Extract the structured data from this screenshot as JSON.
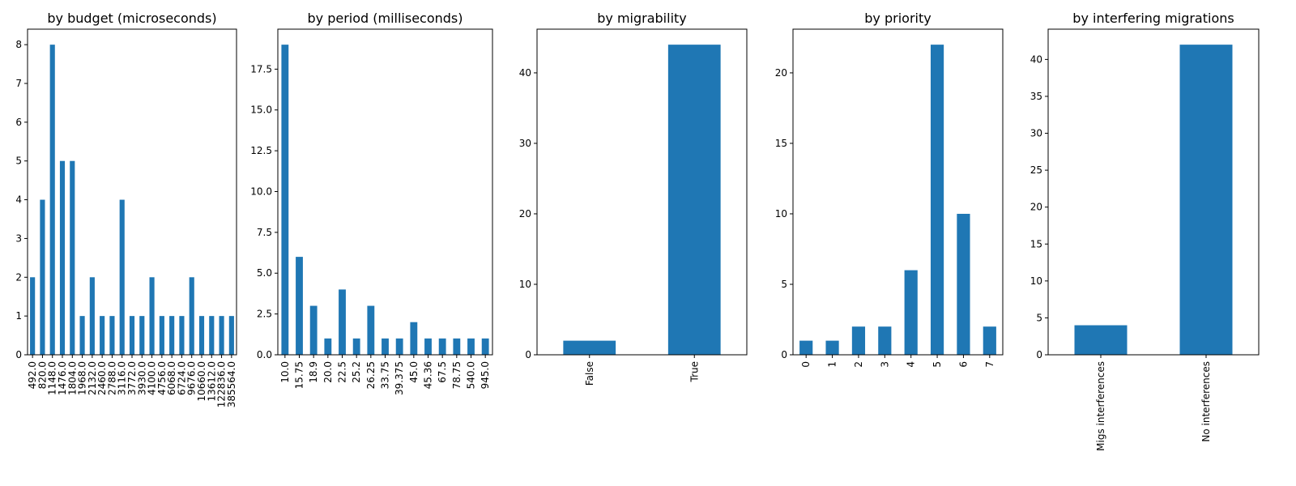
{
  "chart_data": [
    {
      "type": "bar",
      "title": "by budget (microseconds)",
      "xlabel": "",
      "ylabel": "",
      "categories": [
        "492.0",
        "820.0",
        "1148.0",
        "1476.0",
        "1804.0",
        "1968.0",
        "2132.0",
        "2460.0",
        "2788.0",
        "3116.0",
        "3772.0",
        "3930.0",
        "4100.0",
        "4756.0",
        "6068.0",
        "6724.0",
        "9676.0",
        "10660.0",
        "13612.0",
        "122836.0",
        "385564.0"
      ],
      "values": [
        2,
        4,
        8,
        5,
        5,
        1,
        2,
        1,
        1,
        4,
        1,
        1,
        2,
        1,
        1,
        1,
        2,
        1,
        1,
        1,
        1
      ],
      "ylim": [
        0,
        8.4
      ],
      "yticks": [
        0,
        1,
        2,
        3,
        4,
        5,
        6,
        7,
        8
      ],
      "ytick_labels": [
        "0",
        "1",
        "2",
        "3",
        "4",
        "5",
        "6",
        "7",
        "8"
      ],
      "color": "#1f77b4",
      "grid": false,
      "legend": false
    },
    {
      "type": "bar",
      "title": "by period (milliseconds)",
      "xlabel": "",
      "ylabel": "",
      "categories": [
        "10.0",
        "15.75",
        "18.9",
        "20.0",
        "22.5",
        "25.2",
        "26.25",
        "33.75",
        "39.375",
        "45.0",
        "45.36",
        "67.5",
        "78.75",
        "540.0",
        "945.0"
      ],
      "values": [
        19,
        6,
        3,
        1,
        4,
        1,
        3,
        1,
        1,
        2,
        1,
        1,
        1,
        1,
        1
      ],
      "ylim": [
        0,
        19.95
      ],
      "yticks": [
        0,
        2.5,
        5,
        7.5,
        10,
        12.5,
        15,
        17.5
      ],
      "ytick_labels": [
        "0.0",
        "2.5",
        "5.0",
        "7.5",
        "10.0",
        "12.5",
        "15.0",
        "17.5"
      ],
      "color": "#1f77b4",
      "grid": false,
      "legend": false
    },
    {
      "type": "bar",
      "title": "by migrability",
      "xlabel": "",
      "ylabel": "",
      "categories": [
        "False",
        "True"
      ],
      "values": [
        2,
        44
      ],
      "ylim": [
        0,
        46.2
      ],
      "yticks": [
        0,
        10,
        20,
        30,
        40
      ],
      "ytick_labels": [
        "0",
        "10",
        "20",
        "30",
        "40"
      ],
      "color": "#1f77b4",
      "grid": false,
      "legend": false
    },
    {
      "type": "bar",
      "title": "by priority",
      "xlabel": "",
      "ylabel": "",
      "categories": [
        "0",
        "1",
        "2",
        "3",
        "4",
        "5",
        "6",
        "7"
      ],
      "values": [
        1,
        1,
        2,
        2,
        6,
        22,
        10,
        2
      ],
      "ylim": [
        0,
        23.1
      ],
      "yticks": [
        0,
        5,
        10,
        15,
        20
      ],
      "ytick_labels": [
        "0",
        "5",
        "10",
        "15",
        "20"
      ],
      "color": "#1f77b4",
      "grid": false,
      "legend": false
    },
    {
      "type": "bar",
      "title": "by interfering migrations",
      "xlabel": "",
      "ylabel": "",
      "categories": [
        "Migs interferences",
        "No interferences"
      ],
      "values": [
        4,
        42
      ],
      "ylim": [
        0,
        44.1
      ],
      "yticks": [
        0,
        5,
        10,
        15,
        20,
        25,
        30,
        35,
        40
      ],
      "ytick_labels": [
        "0",
        "5",
        "10",
        "15",
        "20",
        "25",
        "30",
        "35",
        "40"
      ],
      "color": "#1f77b4",
      "grid": false,
      "legend": false
    }
  ]
}
